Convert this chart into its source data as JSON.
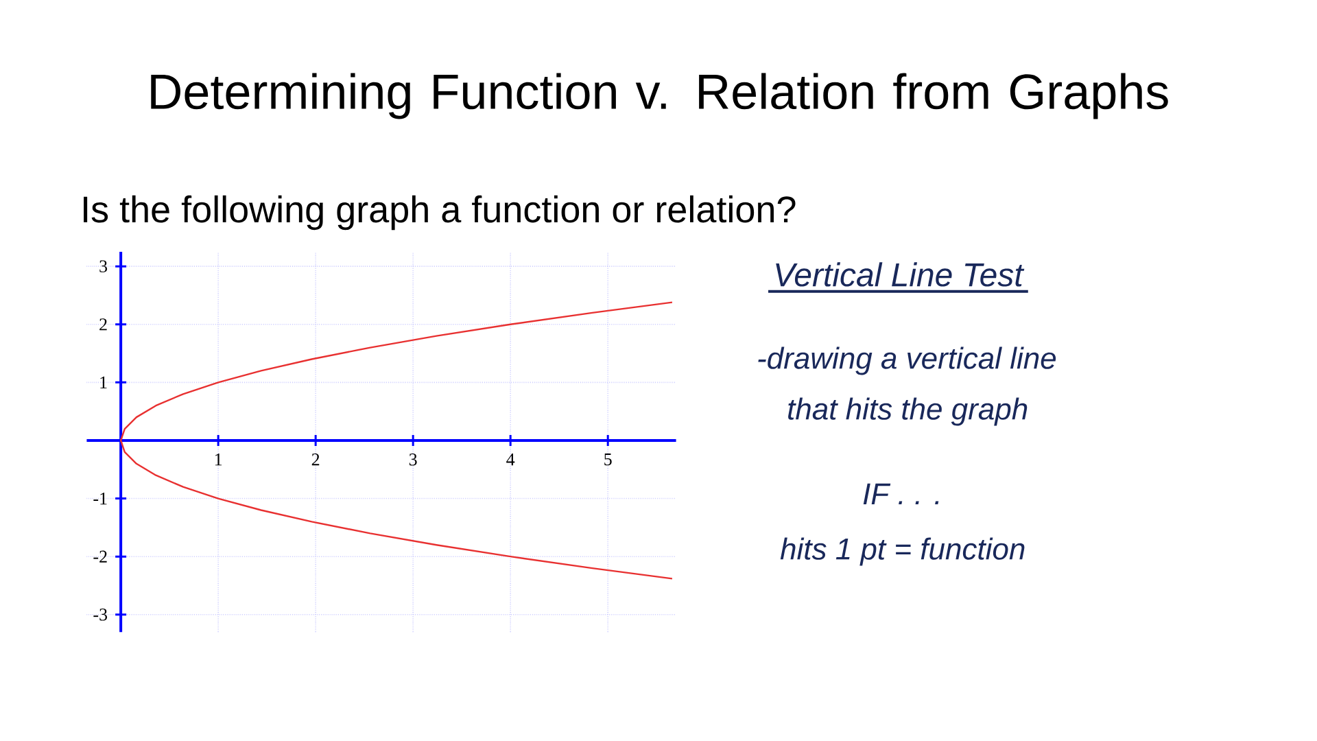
{
  "chart_data": {
    "type": "line",
    "title": "Determining Function v. Relation from Graphs",
    "subtitle": "Is the following graph a function or relation?",
    "series": [
      {
        "color": "#e83030",
        "x": [
          5.66,
          4.84,
          4.0,
          3.24,
          2.56,
          1.96,
          1.44,
          1.0,
          0.64,
          0.36,
          0.16,
          0.04,
          0,
          0.04,
          0.16,
          0.36,
          0.64,
          1.0,
          1.44,
          1.96,
          2.56,
          3.24,
          4.0,
          4.84,
          5.66
        ],
        "values": [
          -2.38,
          -2.2,
          -2.0,
          -1.8,
          -1.6,
          -1.4,
          -1.2,
          -1.0,
          -0.8,
          -0.6,
          -0.4,
          -0.2,
          0,
          0.2,
          0.4,
          0.6,
          0.8,
          1.0,
          1.2,
          1.4,
          1.6,
          1.8,
          2.0,
          2.2,
          2.38
        ]
      }
    ],
    "xlim": [
      -0.35,
      5.7
    ],
    "ylim": [
      -3.3,
      3.25
    ],
    "xticks": [
      1,
      2,
      3,
      4,
      5
    ],
    "yticks": [
      -3,
      -2,
      -1,
      1,
      2,
      3
    ],
    "grid": true,
    "annotations": [
      "Vertical Line Test",
      "-drawing a vertical line",
      "that hits the graph",
      "IF . . .",
      "hits 1 pt = function"
    ]
  }
}
